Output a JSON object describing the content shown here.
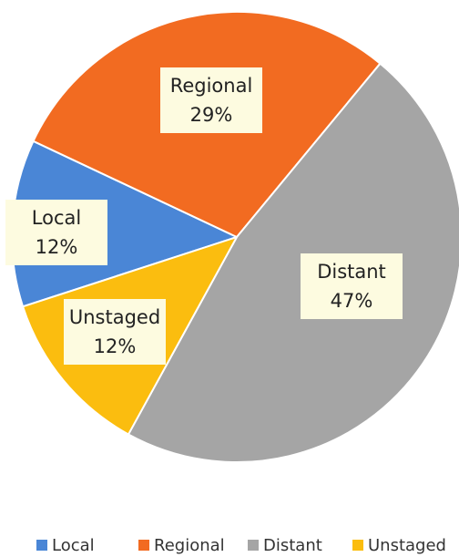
{
  "chart_data": {
    "type": "pie",
    "categories": [
      "Local",
      "Regional",
      "Distant",
      "Unstaged"
    ],
    "values": [
      12,
      29,
      47,
      12
    ],
    "value_labels": [
      "12%",
      "29%",
      "47%",
      "12%"
    ],
    "colors": [
      "#4a86d6",
      "#f26b21",
      "#a5a5a5",
      "#fbbd0f"
    ],
    "legend": "bottom"
  }
}
